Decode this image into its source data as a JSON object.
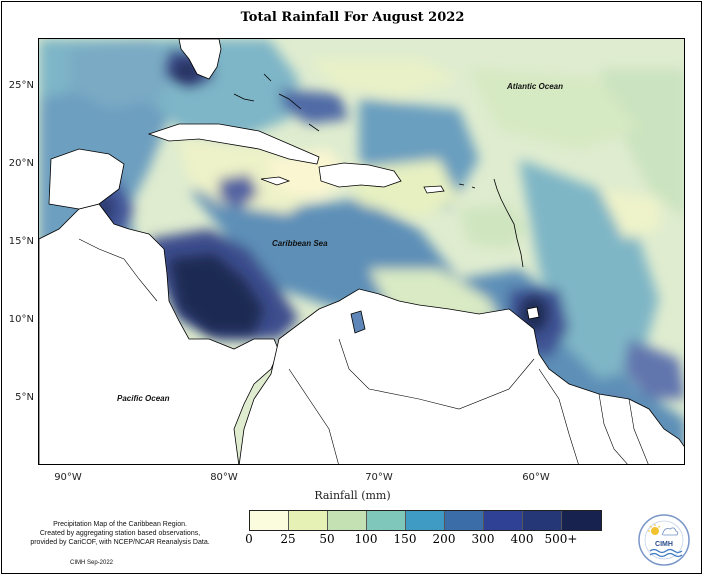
{
  "title": "Total Rainfall For August 2022",
  "map": {
    "lat_ticks": [
      "25°N",
      "20°N",
      "15°N",
      "10°N",
      "5°N"
    ],
    "lon_ticks": [
      "90°W",
      "80°W",
      "70°W",
      "60°W"
    ],
    "xlabel": "Rainfall (mm)",
    "labels": {
      "atlantic": "Atlantic Ocean",
      "caribbean": "Caribbean Sea",
      "pacific": "Pacific Ocean"
    },
    "extent": {
      "lon": [
        -92,
        -50
      ],
      "lat": [
        1,
        28
      ]
    }
  },
  "legend": {
    "colors": [
      "#fbfbde",
      "#e6f1b6",
      "#c4e1b3",
      "#7fc7bb",
      "#3f9bc4",
      "#3b6ea8",
      "#2f4194",
      "#263777",
      "#17234e"
    ],
    "labels": [
      "0",
      "25",
      "50",
      "100",
      "150",
      "200",
      "300",
      "400",
      "500+"
    ]
  },
  "description": [
    "Precipitation Map of the Caribbean Region.",
    "Created by aggregating station based observations,",
    "provided by CariCOF, with NCEP/NCAR Reanalysis Data."
  ],
  "footer_date": "CIMH Sep-2022",
  "logo": {
    "text": "CIMH",
    "icon": "cimh-logo"
  }
}
